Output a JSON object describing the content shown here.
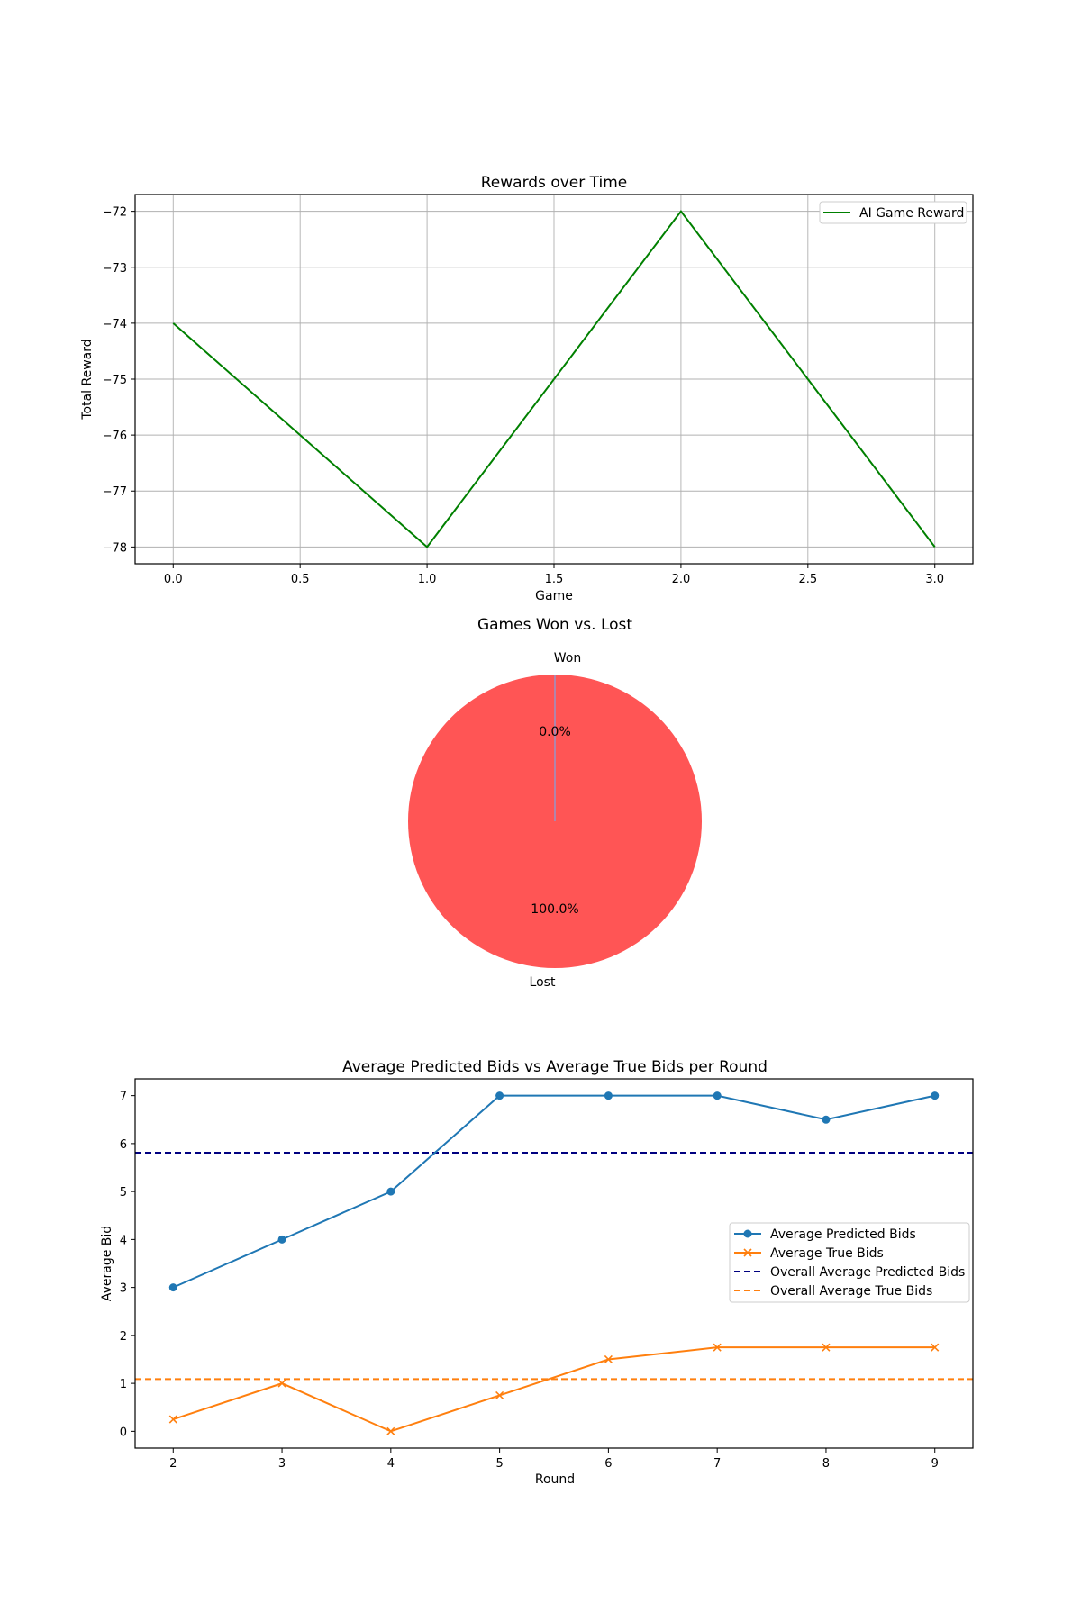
{
  "chart_data": [
    {
      "type": "line",
      "title": "Rewards over Time",
      "xlabel": "Game",
      "ylabel": "Total Reward",
      "xlim": [
        -0.15,
        3.15
      ],
      "ylim": [
        -78.3,
        -71.7
      ],
      "xticks": [
        0.0,
        0.5,
        1.0,
        1.5,
        2.0,
        2.5,
        3.0
      ],
      "xtick_labels": [
        "0.0",
        "0.5",
        "1.0",
        "1.5",
        "2.0",
        "2.5",
        "3.0"
      ],
      "yticks": [
        -72,
        -73,
        -74,
        -75,
        -76,
        -77,
        -78
      ],
      "ytick_labels": [
        "−72",
        "−73",
        "−74",
        "−75",
        "−76",
        "−77",
        "−78"
      ],
      "grid": true,
      "legend": "top-right",
      "series": [
        {
          "name": "AI Game Reward",
          "color": "#008000",
          "x": [
            0,
            1,
            2,
            3
          ],
          "y": [
            -74,
            -78,
            -72,
            -78
          ]
        }
      ]
    },
    {
      "type": "pie",
      "title": "Games Won vs. Lost",
      "slices": [
        {
          "label": "Won",
          "value": 0,
          "pct_label": "0.0%",
          "color": "#66b3ff"
        },
        {
          "label": "Lost",
          "value": 100,
          "pct_label": "100.0%",
          "color": "#ff5555"
        }
      ]
    },
    {
      "type": "line",
      "title": "Average Predicted Bids vs Average True Bids per Round",
      "xlabel": "Round",
      "ylabel": "Average Bid",
      "xlim": [
        1.65,
        9.35
      ],
      "ylim": [
        -0.35,
        7.35
      ],
      "xticks": [
        2,
        3,
        4,
        5,
        6,
        7,
        8,
        9
      ],
      "xtick_labels": [
        "2",
        "3",
        "4",
        "5",
        "6",
        "7",
        "8",
        "9"
      ],
      "yticks": [
        0,
        1,
        2,
        3,
        4,
        5,
        6,
        7
      ],
      "ytick_labels": [
        "0",
        "1",
        "2",
        "3",
        "4",
        "5",
        "6",
        "7"
      ],
      "grid": false,
      "legend": "center-right",
      "series": [
        {
          "name": "Average Predicted Bids",
          "color": "#1f77b4",
          "marker": "circle",
          "x": [
            2,
            3,
            4,
            5,
            6,
            7,
            8,
            9
          ],
          "y": [
            3,
            4,
            5,
            7,
            7,
            7,
            6.5,
            7
          ]
        },
        {
          "name": "Average True Bids",
          "color": "#ff7f0e",
          "marker": "x",
          "x": [
            2,
            3,
            4,
            5,
            6,
            7,
            8,
            9
          ],
          "y": [
            0.25,
            1,
            0,
            0.75,
            1.5,
            1.75,
            1.75,
            1.75
          ]
        }
      ],
      "hlines": [
        {
          "name": "Overall Average Predicted Bids",
          "color": "#000080",
          "y": 5.81
        },
        {
          "name": "Overall Average True Bids",
          "color": "#ff7f0e",
          "y": 1.09
        }
      ]
    }
  ]
}
